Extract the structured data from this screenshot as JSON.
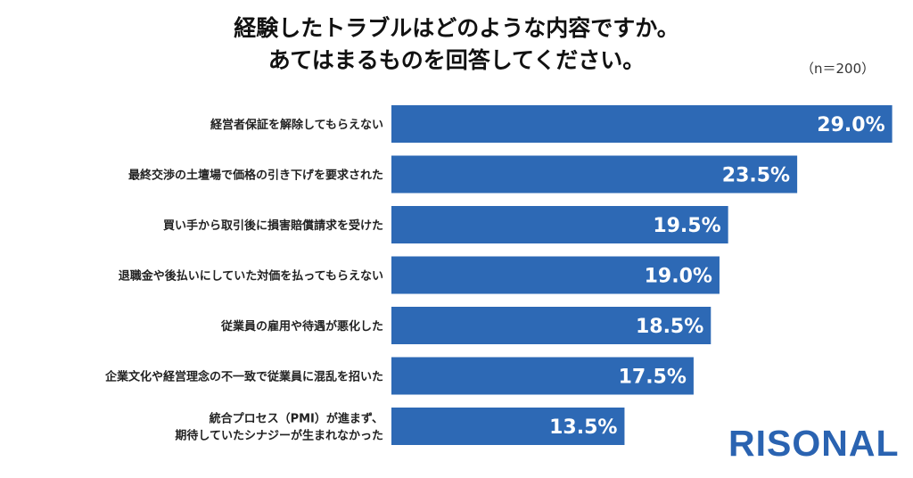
{
  "header": {
    "title_line1": "経験したトラブルはどのような内容ですか。",
    "title_line2": "あてはまるものを回答してください。",
    "sample_size": "（n＝200）"
  },
  "brand": {
    "logo_text": "RISONAL"
  },
  "colors": {
    "bar": "#2d69b5",
    "value_text": "#ffffff",
    "label_text": "#222222"
  },
  "chart_data": {
    "type": "bar",
    "orientation": "horizontal",
    "title": "経験したトラブルはどのような内容ですか。あてはまるものを回答してください。",
    "xlabel": "",
    "ylabel": "",
    "xlim": [
      0,
      30
    ],
    "grid": false,
    "categories": [
      [
        "経営者保証を解除してもらえない"
      ],
      [
        "最終交渉の土壇場で価格の引き下げを要求された"
      ],
      [
        "買い手から取引後に損害賠償請求を受けた"
      ],
      [
        "退職金や後払いにしていた対価を払ってもらえない"
      ],
      [
        "従業員の雇用や待遇が悪化した"
      ],
      [
        "企業文化や経営理念の不一致で従業員に混乱を招いた"
      ],
      [
        "統合プロセス（PMI）が進まず、",
        "期待していたシナジーが生まれなかった"
      ]
    ],
    "values": [
      29.0,
      23.5,
      19.5,
      19.0,
      18.5,
      17.5,
      13.5
    ],
    "value_labels": [
      "29.0%",
      "23.5%",
      "19.5%",
      "19.0%",
      "18.5%",
      "17.5%",
      "13.5%"
    ]
  }
}
